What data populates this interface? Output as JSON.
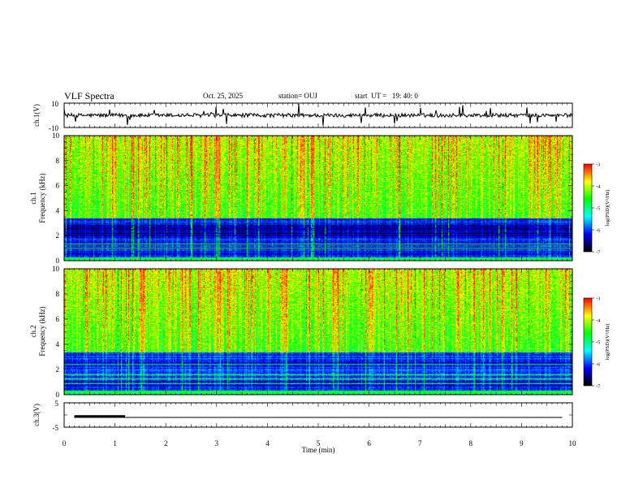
{
  "header": {
    "title": "VLF Spectra",
    "date": "Oct. 25, 2025",
    "station": "station= OUJ",
    "start": "start  UT =   19: 40: 0"
  },
  "chart_data": [
    {
      "type": "line",
      "panel": "ch1-waveform",
      "ylabel": "ch.1(V)",
      "ylim": [
        -10,
        10
      ],
      "yticks": [
        "10",
        "-10"
      ],
      "xlim": [
        0,
        10
      ],
      "series": [
        {
          "name": "ch.1 voltage",
          "baseline": 0,
          "color": "#000000"
        }
      ]
    },
    {
      "type": "heatmap",
      "panel": "ch1-spectrogram",
      "ylabel": "ch.1\nFrequency (kHz)",
      "ylim": [
        0,
        10
      ],
      "yticks": [
        "0",
        "2",
        "4",
        "6",
        "8",
        "10"
      ],
      "xlim": [
        0,
        10
      ],
      "colorbar": {
        "label": "log(PSD)(V²/Hz)",
        "range": [
          -7,
          -3
        ],
        "ticks": [
          "-3",
          "-4",
          "-5",
          "-6",
          "-7"
        ]
      }
    },
    {
      "type": "heatmap",
      "panel": "ch2-spectrogram",
      "ylabel": "ch.2\nFrequency (kHz)",
      "ylim": [
        0,
        10
      ],
      "yticks": [
        "0",
        "2",
        "4",
        "6",
        "8",
        "10"
      ],
      "xlim": [
        0,
        10
      ],
      "colorbar": {
        "label": "log(PSD)(V²/Hz)",
        "range": [
          -7,
          -3
        ],
        "ticks": [
          "-3",
          "-4",
          "-5",
          "-6",
          "-7"
        ]
      }
    },
    {
      "type": "line",
      "panel": "ch3-waveform",
      "ylabel": "ch.3(V)",
      "ylim": [
        -5,
        5
      ],
      "yticks": [
        "5",
        "-5"
      ],
      "xlim": [
        0,
        10
      ],
      "xlabel": "Time (min)",
      "xticks": [
        "0",
        "1",
        "2",
        "3",
        "4",
        "5",
        "6",
        "7",
        "8",
        "9",
        "10"
      ],
      "series": [
        {
          "name": "ch.3 level",
          "y": -1
        },
        {
          "name": "ch.3 pulse",
          "x": [
            0.2,
            1.2
          ],
          "y": -0.6
        }
      ]
    }
  ],
  "colors": {
    "scale": [
      "#000000",
      "#00007f",
      "#0000ff",
      "#0080ff",
      "#00ffff",
      "#00ff80",
      "#00ff00",
      "#80ff00",
      "#ffff00",
      "#ff8000",
      "#ff0000"
    ]
  }
}
